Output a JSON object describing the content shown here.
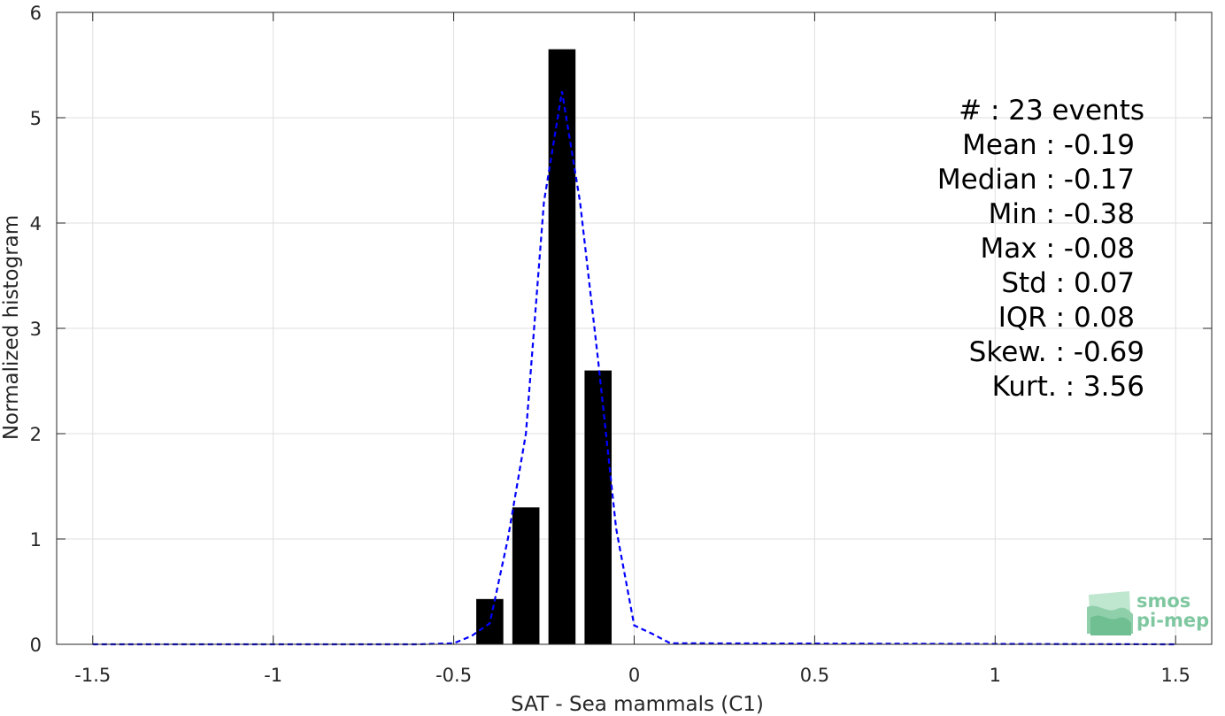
{
  "chart_data": {
    "type": "bar",
    "xlabel": "SAT - Sea mammals (C1)",
    "ylabel": "Normalized histogram",
    "xlim": [
      -1.6,
      1.6
    ],
    "ylim": [
      0,
      6
    ],
    "xticks": [
      -1.5,
      -1,
      -0.5,
      0,
      0.5,
      1,
      1.5
    ],
    "xtick_labels": [
      "-1.5",
      "-1",
      "-0.5",
      "0",
      "0.5",
      "1",
      "1.5"
    ],
    "yticks": [
      0,
      1,
      2,
      3,
      4,
      5,
      6
    ],
    "ytick_labels": [
      "0",
      "1",
      "2",
      "3",
      "4",
      "5",
      "6"
    ],
    "grid": true,
    "bar_width": 0.075,
    "bars": [
      {
        "x": -0.4,
        "value": 0.43
      },
      {
        "x": -0.3,
        "value": 1.3
      },
      {
        "x": -0.2,
        "value": 5.65
      },
      {
        "x": -0.1,
        "value": 2.6
      }
    ],
    "fit_curve": {
      "style": "dashed",
      "color": "#0000ff",
      "x": [
        -1.5,
        -0.6,
        -0.5,
        -0.45,
        -0.4,
        -0.35,
        -0.3,
        -0.25,
        -0.2,
        -0.15,
        -0.1,
        -0.05,
        0.0,
        0.05,
        0.1,
        1.5
      ],
      "y": [
        0,
        0,
        0.01,
        0.08,
        0.2,
        1.0,
        2.0,
        4.2,
        5.25,
        4.2,
        2.7,
        1.1,
        0.18,
        0.1,
        0.01,
        0
      ]
    },
    "colors": {
      "bars": "#000000",
      "grid": "#dfdfdf",
      "axis": "#262626"
    }
  },
  "stats": {
    "lines": [
      "#  : 23 events",
      "Mean : -0.19",
      "Median : -0.17",
      "Min : -0.38",
      "Max : -0.08",
      "Std : 0.07",
      "IQR : 0.08",
      "Skew. : -0.69",
      "Kurt. : 3.56"
    ]
  },
  "logo": {
    "line1": "smos",
    "line2": "pi-mep"
  }
}
